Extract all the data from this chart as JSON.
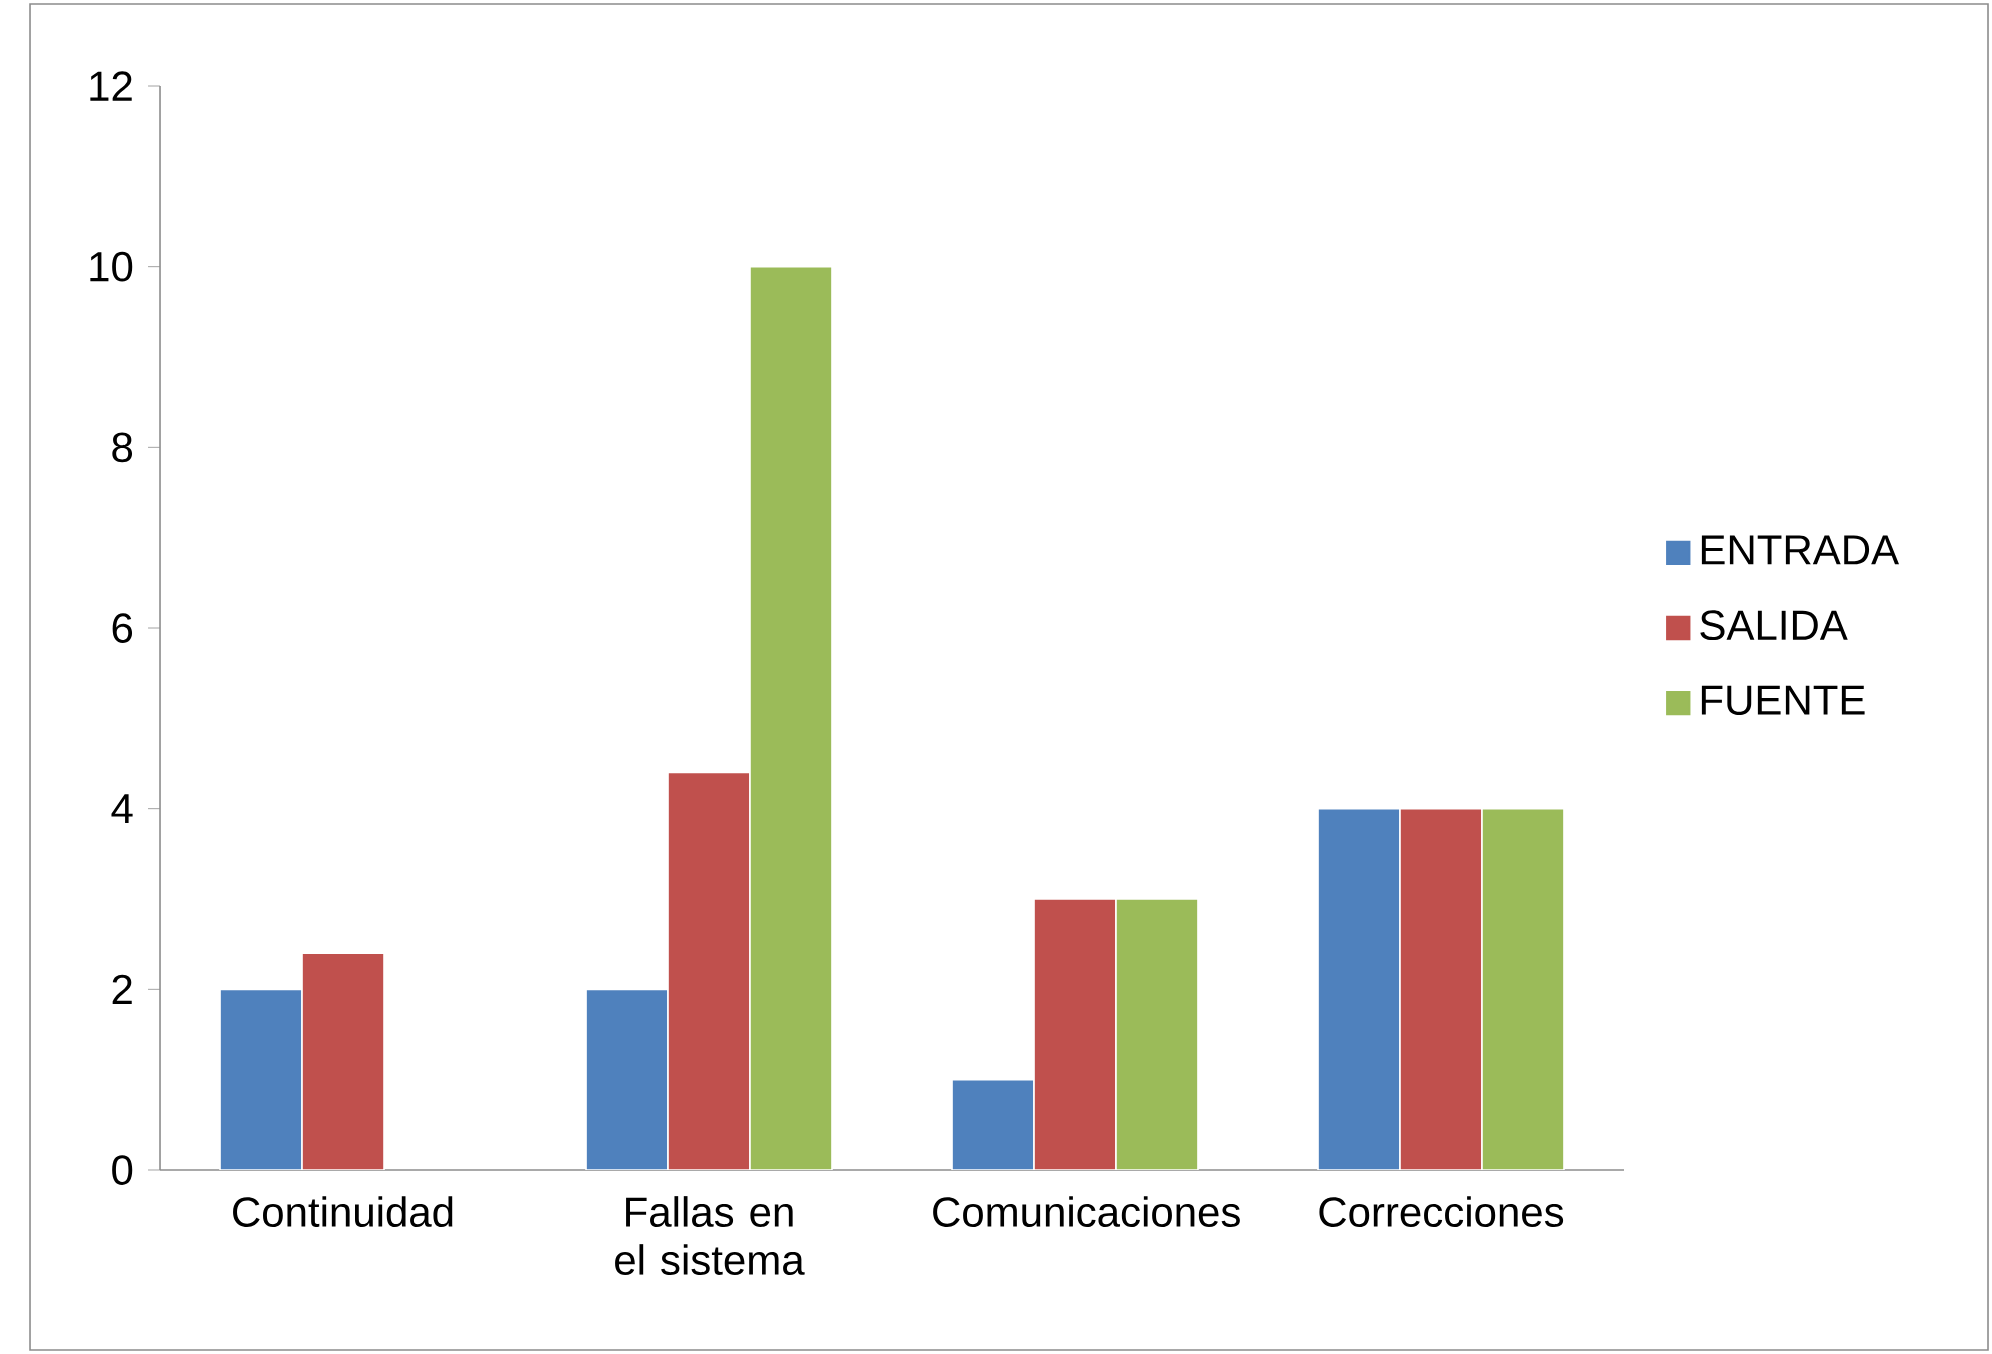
{
  "chart_data": {
    "type": "bar",
    "categories": [
      "Continuidad",
      "Fallas en el sistema",
      "Comunicaciones",
      "Correcciones"
    ],
    "series": [
      {
        "name": "ENTRADA",
        "color": "#4f81bd",
        "values": [
          2,
          2,
          1,
          4
        ]
      },
      {
        "name": "SALIDA",
        "color": "#c0504d",
        "values": [
          2.4,
          4.4,
          3,
          4
        ]
      },
      {
        "name": "FUENTE",
        "color": "#9bbb59",
        "values": [
          null,
          10,
          3,
          4
        ]
      }
    ],
    "ylim": [
      0,
      12
    ],
    "yticks": [
      0,
      2,
      4,
      6,
      8,
      10,
      12
    ],
    "grid": false,
    "legend": "right"
  }
}
